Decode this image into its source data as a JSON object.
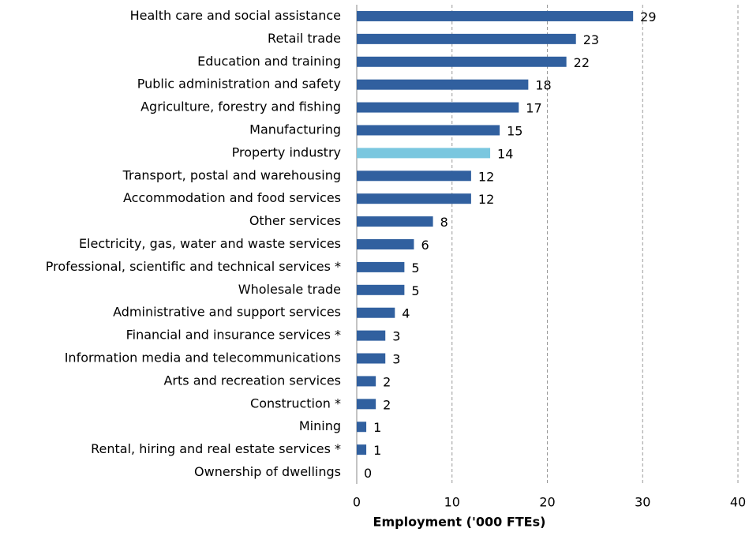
{
  "chart_data": {
    "type": "barh",
    "xlabel": "Employment ('000 FTEs)",
    "categories": [
      "Health care and social assistance",
      "Retail trade",
      "Education and training",
      "Public administration and safety",
      "Agriculture, forestry and fishing",
      "Manufacturing",
      "Property industry",
      "Transport, postal and warehousing",
      "Accommodation and food services",
      "Other services",
      "Electricity, gas, water and waste services",
      "Professional, scientific and technical services *",
      "Wholesale trade",
      "Administrative and support services",
      "Financial and insurance services *",
      "Information media and telecommunications",
      "Arts and recreation services",
      "Construction *",
      "Mining",
      "Rental, hiring and real estate services *",
      "Ownership of dwellings"
    ],
    "values": [
      29,
      23,
      22,
      18,
      17,
      15,
      14,
      12,
      12,
      8,
      6,
      5,
      5,
      4,
      3,
      3,
      2,
      2,
      1,
      1,
      0
    ],
    "colors": [
      "#31609f",
      "#31609f",
      "#31609f",
      "#31609f",
      "#31609f",
      "#31609f",
      "#7ac7df",
      "#31609f",
      "#31609f",
      "#31609f",
      "#31609f",
      "#31609f",
      "#31609f",
      "#31609f",
      "#31609f",
      "#31609f",
      "#31609f",
      "#31609f",
      "#31609f",
      "#31609f",
      "#31609f"
    ],
    "xlim": [
      0,
      40
    ],
    "xticks": [
      0,
      10,
      20,
      30,
      40
    ],
    "grid": true
  }
}
